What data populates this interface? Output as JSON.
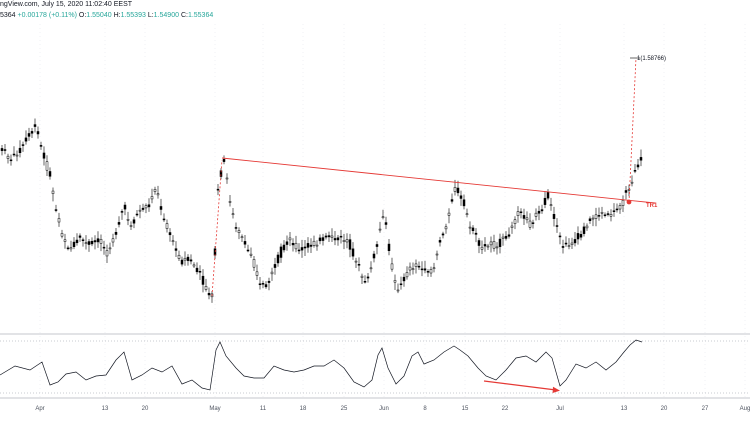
{
  "header": {
    "source": "ngView.com, July 15, 2020 11:02:40 EEST",
    "last_prefix": "5364",
    "change": "+0.00178 (+0.11%)",
    "o_label": "O:",
    "o_value": "1.55040",
    "h_label": "H:",
    "h_value": "1.55393",
    "l_label": "L:",
    "l_value": "1.54900",
    "c_label": "C:",
    "c_value": "1.55364"
  },
  "chart_data": [
    {
      "type": "candlestick",
      "annotations": {
        "target_label": "1(1.58766)",
        "trendline_label": "TR1"
      },
      "x_ticks": [
        "Apr",
        "13",
        "20",
        "May",
        "11",
        "18",
        "25",
        "Jun",
        "8",
        "15",
        "22",
        "Jul",
        "13",
        "20",
        "27",
        "Aug"
      ],
      "colors": {
        "candle": "#000000",
        "trendline": "#e53935",
        "target_line": "#e53935",
        "grid": "#e0e3eb"
      }
    },
    {
      "type": "line",
      "name": "oscillator",
      "colors": {
        "line": "#131722",
        "divergence_arrow": "#e53935"
      }
    }
  ]
}
